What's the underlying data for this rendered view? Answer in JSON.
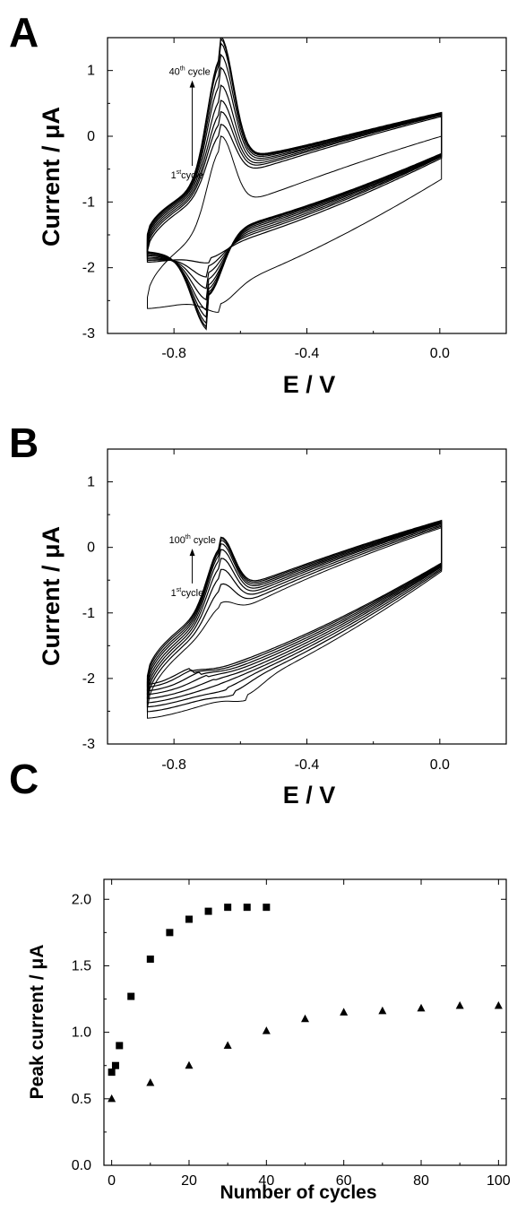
{
  "chart_data": [
    {
      "panel_label": "A",
      "type": "line",
      "xlabel": "E / V",
      "ylabel": "Current / μA",
      "xlim": [
        -1.0,
        0.2
      ],
      "ylim": [
        -3,
        1.5
      ],
      "xticks": [
        -0.8,
        -0.4,
        0.0
      ],
      "xtick_labels": [
        "-0.8",
        "-0.4",
        "0.0"
      ],
      "yticks": [
        -3,
        -2,
        -1,
        0,
        1
      ],
      "ytick_labels": [
        "-3",
        "-2",
        "-1",
        "0",
        "1"
      ],
      "annotations": {
        "top": {
          "base": "40",
          "sup": "th",
          "rest": " cycle"
        },
        "bottom": {
          "base": "1",
          "sup": "st",
          "rest": "cycle"
        },
        "arrow": {
          "x": -0.745,
          "y_from": -0.45,
          "y_to": 0.85
        }
      },
      "e_start": -0.88,
      "e_end": 0.005,
      "series": [
        {
          "anodic_peak": -0.2,
          "cathodic_peak": -2.55,
          "cathodic_peak_e": -0.66,
          "start_current": -2.45,
          "end_current": 0.0,
          "first_cycle": true
        },
        {
          "anodic_peak": 0.03,
          "cathodic_peak": -1.85,
          "cathodic_peak_e": -0.69,
          "start_current": -1.75,
          "end_current": 0.3
        },
        {
          "anodic_peak": 0.2,
          "cathodic_peak": -1.98,
          "cathodic_peak_e": -0.7,
          "start_current": -1.7,
          "end_current": 0.32
        },
        {
          "anodic_peak": 0.35,
          "cathodic_peak": -2.08,
          "cathodic_peak_e": -0.7,
          "start_current": -1.66,
          "end_current": 0.33
        },
        {
          "anodic_peak": 0.55,
          "cathodic_peak": -2.18,
          "cathodic_peak_e": -0.7,
          "start_current": -1.62,
          "end_current": 0.34
        },
        {
          "anodic_peak": 0.78,
          "cathodic_peak": -2.27,
          "cathodic_peak_e": -0.7,
          "start_current": -1.58,
          "end_current": 0.34
        },
        {
          "anodic_peak": 0.95,
          "cathodic_peak": -2.33,
          "cathodic_peak_e": -0.7,
          "start_current": -1.55,
          "end_current": 0.35
        },
        {
          "anodic_peak": 1.1,
          "cathodic_peak": -2.38,
          "cathodic_peak_e": -0.7,
          "start_current": -1.52,
          "end_current": 0.35
        },
        {
          "anodic_peak": 1.16,
          "cathodic_peak": -2.41,
          "cathodic_peak_e": -0.7,
          "start_current": -1.5,
          "end_current": 0.35
        },
        {
          "anodic_peak": 1.19,
          "cathodic_peak": -2.43,
          "cathodic_peak_e": -0.7,
          "start_current": -1.49,
          "end_current": 0.36
        }
      ]
    },
    {
      "panel_label": "B",
      "type": "line",
      "xlabel": "E / V",
      "ylabel": "Current / μA",
      "xlim": [
        -1.0,
        0.2
      ],
      "ylim": [
        -3,
        1.5
      ],
      "xticks": [
        -0.8,
        -0.4,
        0.0
      ],
      "xtick_labels": [
        "-0.8",
        "-0.4",
        "0.0"
      ],
      "yticks": [
        -3,
        -2,
        -1,
        0,
        1
      ],
      "ytick_labels": [
        "-3",
        "-2",
        "-1",
        "0",
        "1"
      ],
      "annotations": {
        "top": {
          "base": "100",
          "sup": "th",
          "rest": " cycle"
        },
        "bottom": {
          "base": "1",
          "sup": "st",
          "rest": "cycle"
        },
        "arrow": {
          "x": -0.745,
          "y_from": -0.55,
          "y_to": -0.02
        }
      },
      "e_start": -0.88,
      "e_end": 0.005,
      "series": [
        {
          "anodic_peak": -0.9,
          "cathodic_peak": -2.25,
          "cathodic_peak_e": -0.58,
          "start_current": -2.45,
          "end_current": 0.3,
          "first_cycle": true
        },
        {
          "anodic_peak": -0.65,
          "cathodic_peak": -2.2,
          "cathodic_peak_e": -0.62,
          "start_current": -2.35,
          "end_current": 0.32
        },
        {
          "anodic_peak": -0.45,
          "cathodic_peak": -2.14,
          "cathodic_peak_e": -0.64,
          "start_current": -2.28,
          "end_current": 0.34
        },
        {
          "anodic_peak": -0.3,
          "cathodic_peak": -2.08,
          "cathodic_peak_e": -0.66,
          "start_current": -2.22,
          "end_current": 0.36
        },
        {
          "anodic_peak": -0.18,
          "cathodic_peak": -2.03,
          "cathodic_peak_e": -0.68,
          "start_current": -2.16,
          "end_current": 0.37
        },
        {
          "anodic_peak": -0.1,
          "cathodic_peak": -1.98,
          "cathodic_peak_e": -0.7,
          "start_current": -2.1,
          "end_current": 0.38
        },
        {
          "anodic_peak": -0.05,
          "cathodic_peak": -1.94,
          "cathodic_peak_e": -0.72,
          "start_current": -2.05,
          "end_current": 0.39
        },
        {
          "anodic_peak": -0.02,
          "cathodic_peak": -1.91,
          "cathodic_peak_e": -0.74,
          "start_current": -2.0,
          "end_current": 0.4
        },
        {
          "anodic_peak": 0.0,
          "cathodic_peak": -1.89,
          "cathodic_peak_e": -0.75,
          "start_current": -1.96,
          "end_current": 0.41
        }
      ]
    },
    {
      "panel_label": "C",
      "type": "scatter",
      "xlabel": "Number of cycles",
      "ylabel": "Peak current / μA",
      "xlim": [
        -2,
        102
      ],
      "ylim": [
        0,
        2.15
      ],
      "xticks": [
        0,
        20,
        40,
        60,
        80,
        100
      ],
      "xtick_labels": [
        "0",
        "20",
        "40",
        "60",
        "80",
        "100"
      ],
      "yticks": [
        0,
        0.5,
        1.0,
        1.5,
        2.0
      ],
      "ytick_labels": [
        "0.0",
        "0.5",
        "1.0",
        "1.5",
        "2.0"
      ],
      "series": [
        {
          "marker": "square",
          "x": [
            0,
            1,
            2,
            5,
            10,
            15,
            20,
            25,
            30,
            35,
            40
          ],
          "y": [
            0.7,
            0.75,
            0.9,
            1.27,
            1.55,
            1.75,
            1.85,
            1.91,
            1.94,
            1.94,
            1.94
          ]
        },
        {
          "marker": "triangle",
          "x": [
            0,
            10,
            20,
            30,
            40,
            50,
            60,
            70,
            80,
            90,
            100
          ],
          "y": [
            0.5,
            0.62,
            0.75,
            0.9,
            1.01,
            1.1,
            1.15,
            1.16,
            1.18,
            1.2,
            1.2
          ]
        }
      ]
    }
  ]
}
